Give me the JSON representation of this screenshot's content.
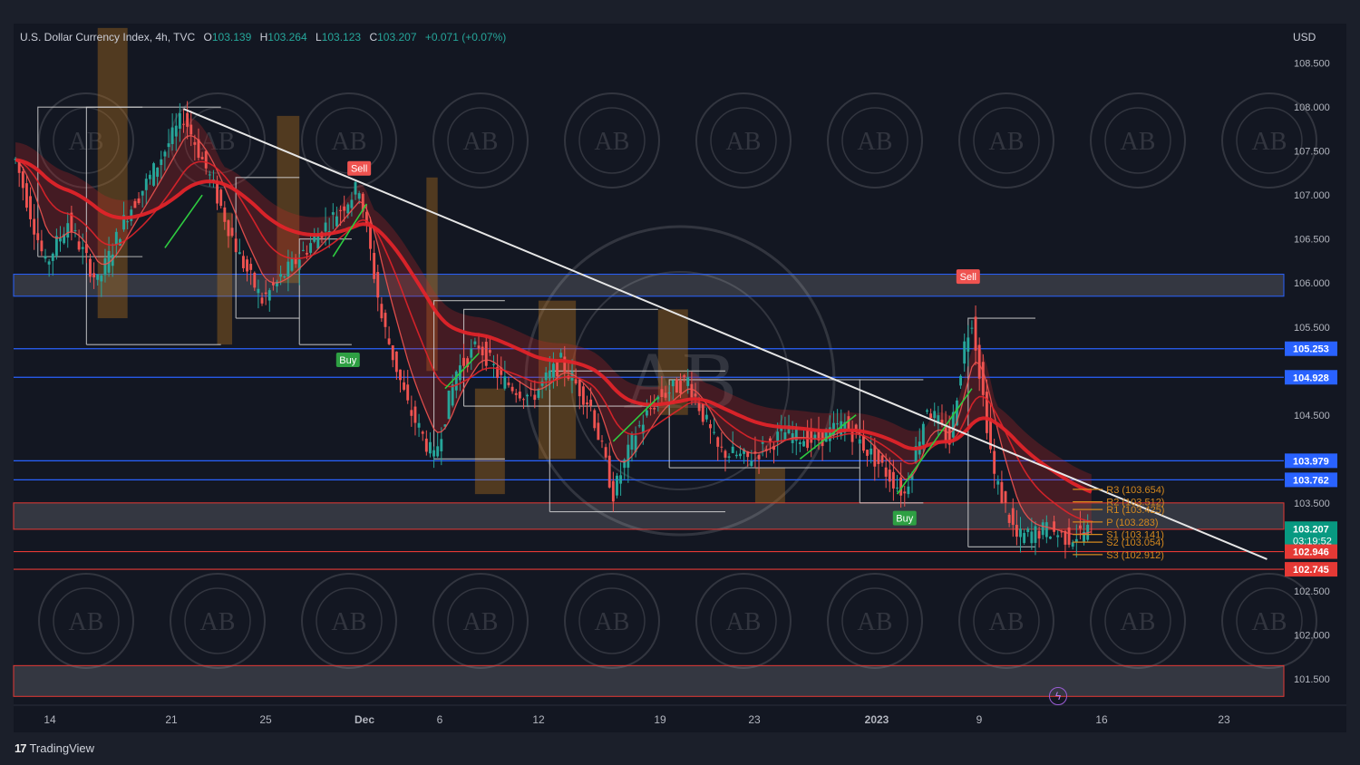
{
  "header": {
    "symbol": "U.S. Dollar Currency Index, 4h, TVC",
    "open_label": "O",
    "open": "103.139",
    "high_label": "H",
    "high": "103.264",
    "low_label": "L",
    "low": "103.123",
    "close_label": "C",
    "close": "103.207",
    "change": "+0.071 (+0.07%)"
  },
  "currency": "USD",
  "brand": "TradingView",
  "watermark_text": "AB",
  "colors": {
    "bull": "#26a69a",
    "bear": "#ef5350",
    "ema": "#e0242a",
    "trendline": "#e6e6e6",
    "blue_level": "#2962ff",
    "red_level": "#e53935",
    "pivot": "#d4881e"
  },
  "chart_data": {
    "type": "candlestick",
    "interval": "4h",
    "y_range": [
      101.2,
      108.95
    ],
    "price_ticks": [
      "108.500",
      "108.000",
      "107.500",
      "107.000",
      "106.500",
      "106.000",
      "105.500",
      "104.500",
      "103.500",
      "102.500",
      "102.000",
      "101.500"
    ],
    "date_ticks": [
      "14",
      "21",
      "25",
      "Dec",
      "6",
      "12",
      "19",
      "23",
      "2023",
      "9",
      "16",
      "23"
    ],
    "price_labels": [
      {
        "value": "105.253",
        "kind": "blue"
      },
      {
        "value": "104.928",
        "kind": "blue"
      },
      {
        "value": "103.979",
        "kind": "blue"
      },
      {
        "value": "103.762",
        "kind": "blue"
      },
      {
        "value": "103.207",
        "kind": "current",
        "countdown": "03:19:52"
      },
      {
        "value": "102.946",
        "kind": "red"
      },
      {
        "value": "102.745",
        "kind": "red"
      }
    ],
    "pivots": [
      {
        "label": "R3 (103.654)",
        "value": 103.654
      },
      {
        "label": "R2 (103.512)",
        "value": 103.512
      },
      {
        "label": "R1 (103.425)",
        "value": 103.425
      },
      {
        "label": "P (103.283)",
        "value": 103.283
      },
      {
        "label": "S1 (103.141)",
        "value": 103.141
      },
      {
        "label": "S2 (103.054)",
        "value": 103.054
      },
      {
        "label": "S3 (102.912)",
        "value": 102.912
      }
    ],
    "signals": [
      {
        "text": "Sell",
        "kind": "sell",
        "bar": 92,
        "price": 107.18
      },
      {
        "text": "Buy",
        "kind": "buy",
        "bar": 89,
        "price": 105.25
      },
      {
        "text": "Sell",
        "kind": "sell",
        "bar": 255,
        "price": 105.95
      },
      {
        "text": "Buy",
        "kind": "buy",
        "bar": 238,
        "price": 103.45
      }
    ],
    "zones": [
      {
        "from": 105.85,
        "to": 106.1,
        "kind": "blue"
      },
      {
        "from": 103.2,
        "to": 103.5,
        "kind": "red"
      },
      {
        "from": 101.3,
        "to": 101.65,
        "kind": "red"
      }
    ],
    "blue_lines": [
      105.253,
      104.928,
      103.979,
      103.762
    ],
    "red_lines": [
      102.946,
      102.745
    ],
    "trendline": {
      "from_bar": 45,
      "from_price": 107.98,
      "to_bar": 335,
      "to_price": 102.86
    },
    "close_path": [
      {
        "bar": 0,
        "close": 107.4
      },
      {
        "bar": 8,
        "close": 106.2
      },
      {
        "bar": 14,
        "close": 106.7
      },
      {
        "bar": 22,
        "close": 106.0
      },
      {
        "bar": 30,
        "close": 106.8
      },
      {
        "bar": 36,
        "close": 107.2
      },
      {
        "bar": 45,
        "close": 107.9
      },
      {
        "bar": 52,
        "close": 107.2
      },
      {
        "bar": 60,
        "close": 106.3
      },
      {
        "bar": 66,
        "close": 105.8
      },
      {
        "bar": 74,
        "close": 106.2
      },
      {
        "bar": 82,
        "close": 106.6
      },
      {
        "bar": 88,
        "close": 106.9
      },
      {
        "bar": 92,
        "close": 107.1
      },
      {
        "bar": 98,
        "close": 105.6
      },
      {
        "bar": 105,
        "close": 104.6
      },
      {
        "bar": 112,
        "close": 104.0
      },
      {
        "bar": 118,
        "close": 105.0
      },
      {
        "bar": 124,
        "close": 105.3
      },
      {
        "bar": 130,
        "close": 104.9
      },
      {
        "bar": 138,
        "close": 104.7
      },
      {
        "bar": 146,
        "close": 105.1
      },
      {
        "bar": 154,
        "close": 104.6
      },
      {
        "bar": 160,
        "close": 103.6
      },
      {
        "bar": 166,
        "close": 104.3
      },
      {
        "bar": 172,
        "close": 104.7
      },
      {
        "bar": 180,
        "close": 104.9
      },
      {
        "bar": 188,
        "close": 104.1
      },
      {
        "bar": 196,
        "close": 104.0
      },
      {
        "bar": 206,
        "close": 104.3
      },
      {
        "bar": 214,
        "close": 104.2
      },
      {
        "bar": 222,
        "close": 104.4
      },
      {
        "bar": 232,
        "close": 103.9
      },
      {
        "bar": 238,
        "close": 103.6
      },
      {
        "bar": 244,
        "close": 104.6
      },
      {
        "bar": 250,
        "close": 104.2
      },
      {
        "bar": 254,
        "close": 105.3
      },
      {
        "bar": 256,
        "close": 105.6
      },
      {
        "bar": 262,
        "close": 103.8
      },
      {
        "bar": 268,
        "close": 103.1
      },
      {
        "bar": 276,
        "close": 103.2
      },
      {
        "bar": 282,
        "close": 103.1
      },
      {
        "bar": 288,
        "close": 103.21
      }
    ]
  }
}
